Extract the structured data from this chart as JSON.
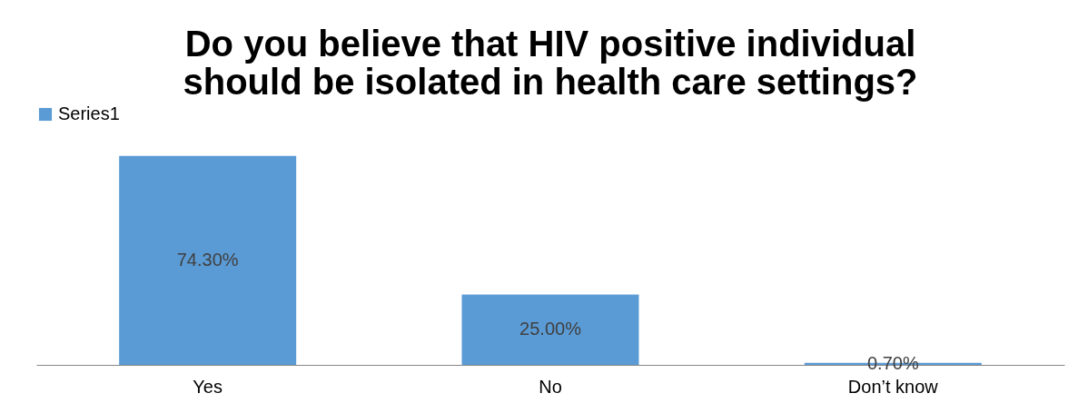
{
  "chart_data": {
    "type": "bar",
    "title": [
      "Do you believe that HIV positive individual",
      "should be isolated in health care settings?"
    ],
    "categories": [
      "Yes",
      "No",
      "Don’t know"
    ],
    "series": [
      {
        "name": "Series1",
        "color": "#5b9bd5",
        "values": [
          74.3,
          25.0,
          0.7
        ],
        "value_labels": [
          "74.30%",
          "25.00%",
          "0.70%"
        ]
      }
    ],
    "legend": "top",
    "tick_labels": "x",
    "grid": false
  }
}
